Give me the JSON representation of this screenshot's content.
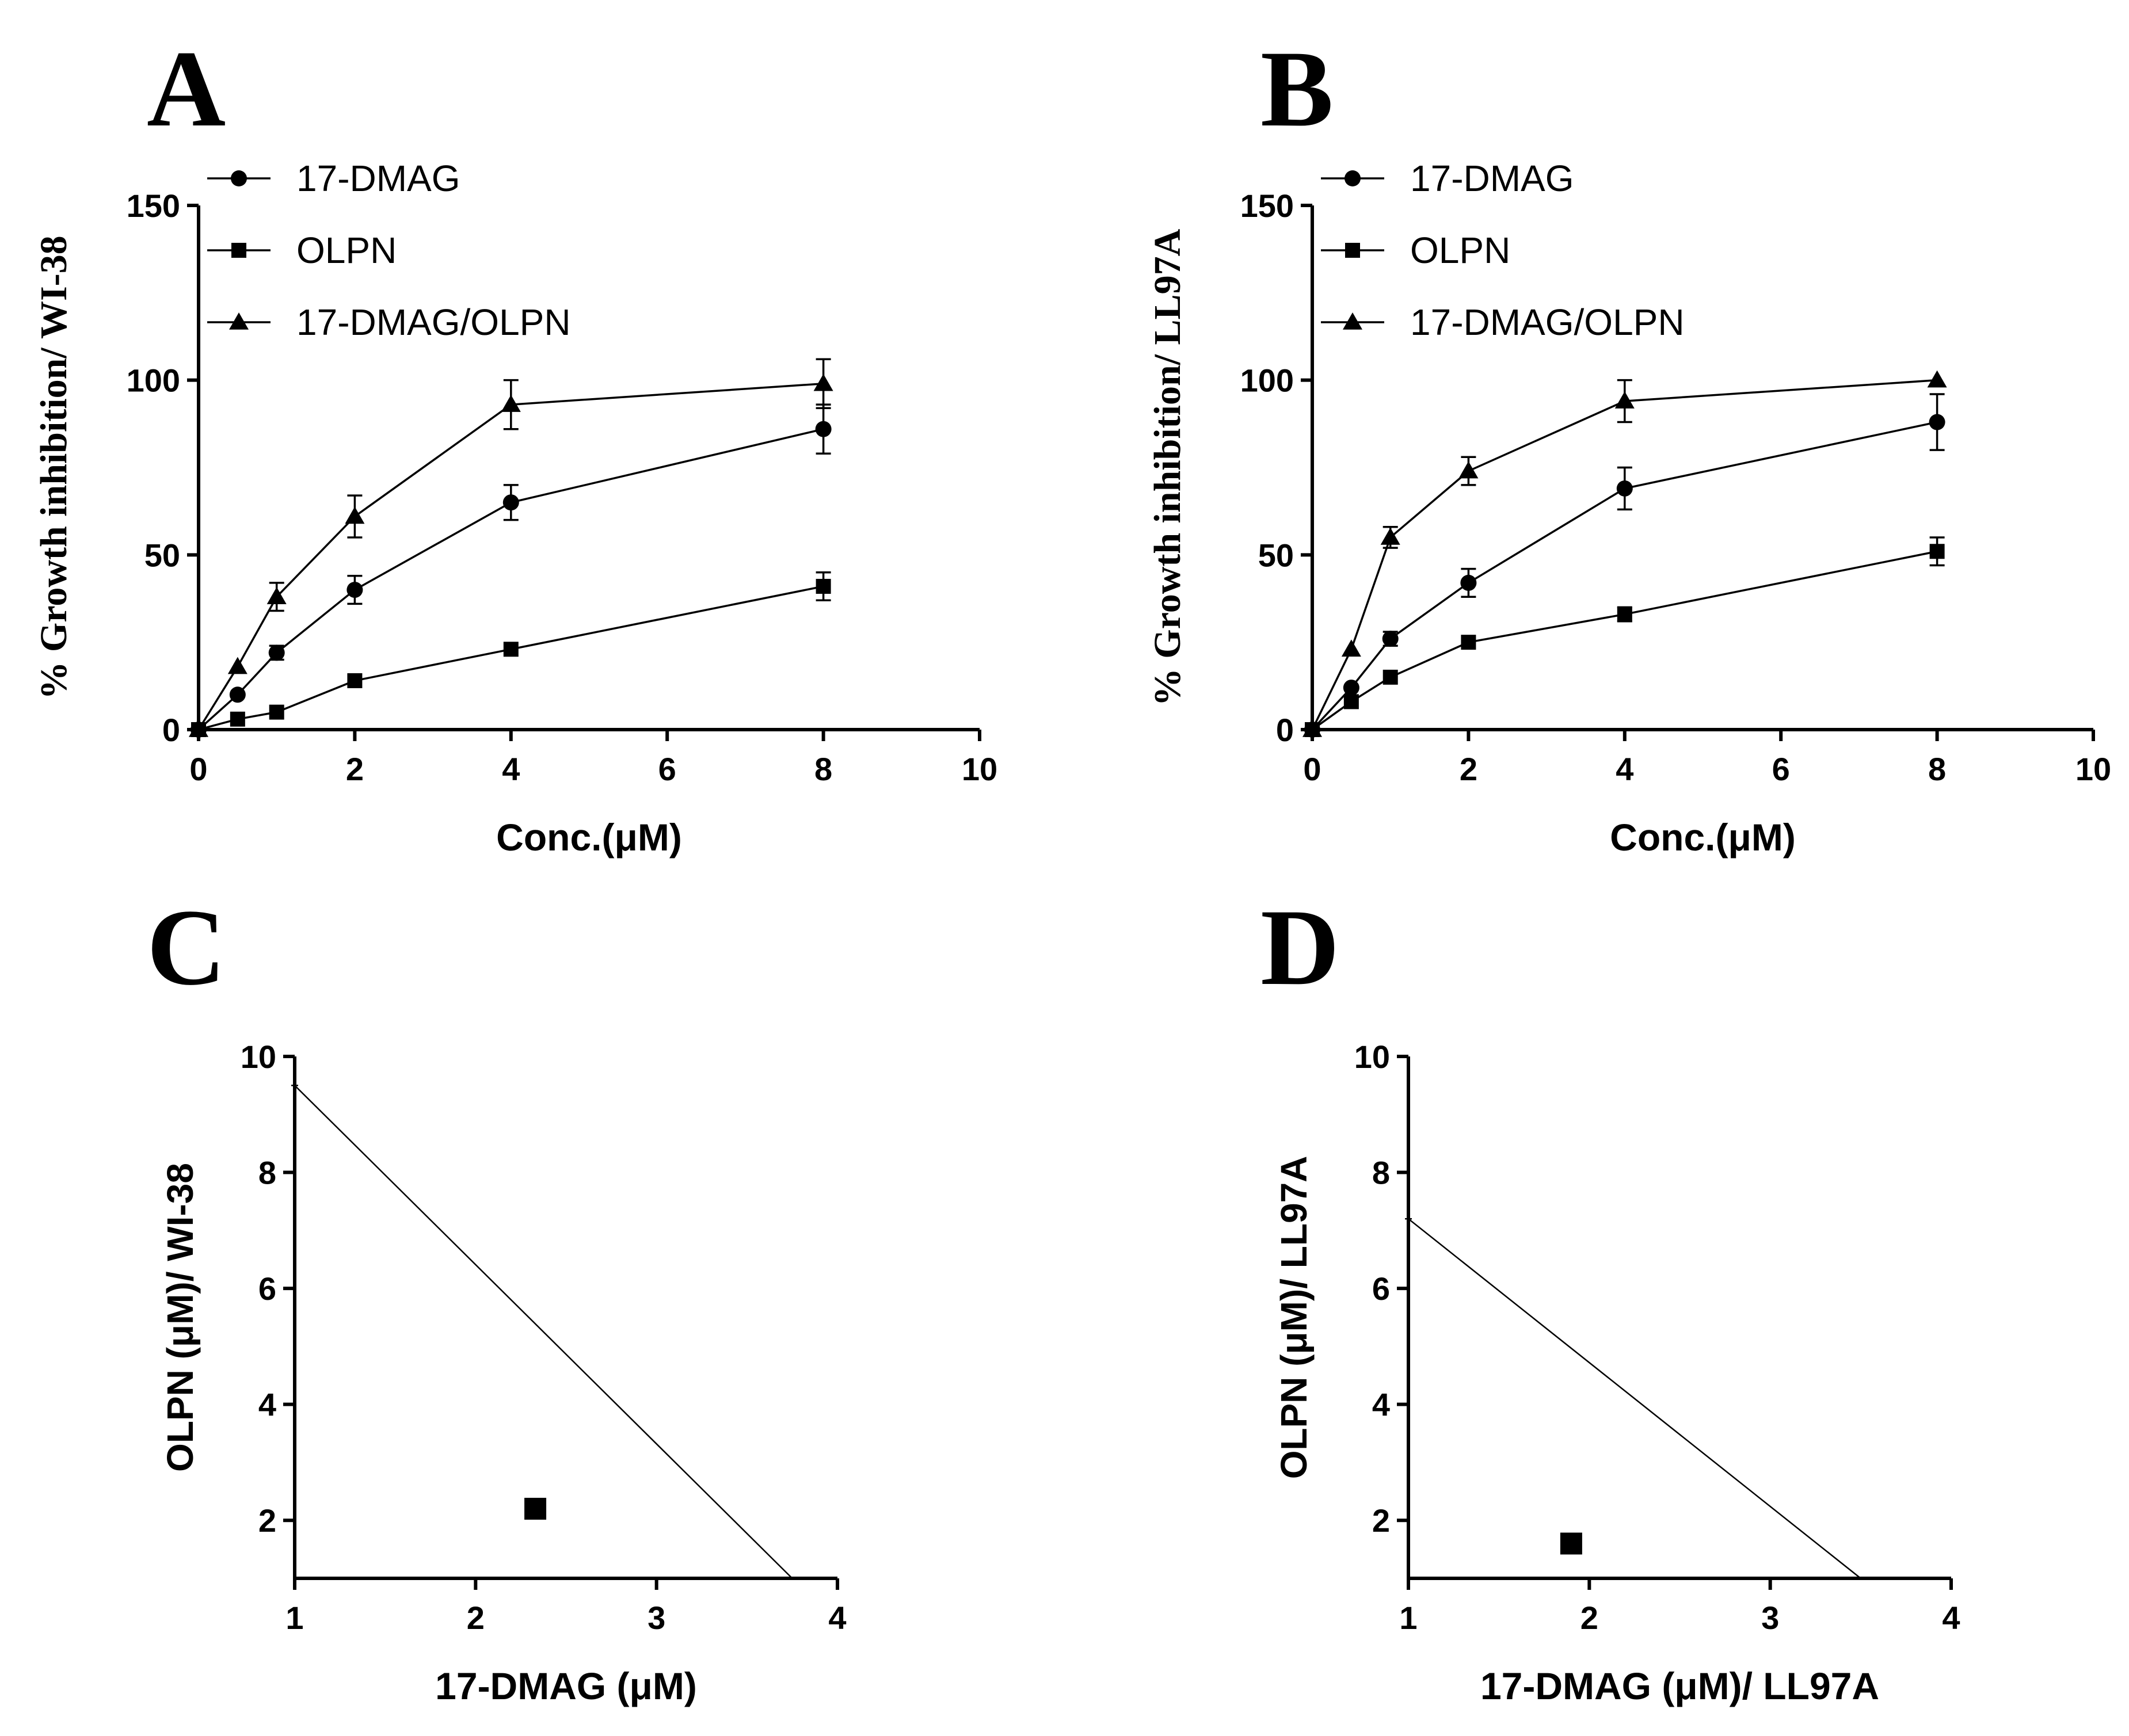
{
  "chart_data": [
    {
      "panel": "A",
      "type": "line",
      "xlabel": "Conc.(μM)",
      "ylabel": "% Growth inhibition/ WI-38",
      "xlim": [
        0,
        10
      ],
      "ylim": [
        0,
        150
      ],
      "xticks": [
        0,
        2,
        4,
        6,
        8,
        10
      ],
      "yticks": [
        0,
        50,
        100,
        150
      ],
      "legend": "top-left",
      "series": [
        {
          "name": "17-DMAG",
          "marker": "circle",
          "x": [
            0,
            0.5,
            1,
            2,
            4,
            8
          ],
          "y": [
            0,
            10,
            22,
            40,
            65,
            86
          ],
          "err": [
            0,
            0,
            2,
            4,
            5,
            7
          ]
        },
        {
          "name": "OLPN",
          "marker": "square",
          "x": [
            0,
            0.5,
            1,
            2,
            4,
            8
          ],
          "y": [
            0,
            3,
            5,
            14,
            23,
            41
          ],
          "err": [
            0,
            0,
            0,
            0,
            0,
            4
          ]
        },
        {
          "name": "17-DMAG/OLPN",
          "marker": "triangle",
          "x": [
            0,
            0.5,
            1,
            2,
            4,
            8
          ],
          "y": [
            0,
            18,
            38,
            61,
            93,
            99
          ],
          "err": [
            0,
            0,
            4,
            6,
            7,
            7
          ]
        }
      ]
    },
    {
      "panel": "B",
      "type": "line",
      "xlabel": "Conc.(μM)",
      "ylabel": "% Growth inhibition/ LL97A",
      "xlim": [
        0,
        10
      ],
      "ylim": [
        0,
        150
      ],
      "xticks": [
        0,
        2,
        4,
        6,
        8,
        10
      ],
      "yticks": [
        0,
        50,
        100,
        150
      ],
      "legend": "top-left",
      "series": [
        {
          "name": "17-DMAG",
          "marker": "circle",
          "x": [
            0,
            0.5,
            1,
            2,
            4,
            8
          ],
          "y": [
            0,
            12,
            26,
            42,
            69,
            88
          ],
          "err": [
            0,
            0,
            2,
            4,
            6,
            8
          ]
        },
        {
          "name": "OLPN",
          "marker": "square",
          "x": [
            0,
            0.5,
            1,
            2,
            4,
            8
          ],
          "y": [
            0,
            8,
            15,
            25,
            33,
            51
          ],
          "err": [
            0,
            0,
            0,
            0,
            2,
            4
          ]
        },
        {
          "name": "17-DMAG/OLPN",
          "marker": "triangle",
          "x": [
            0,
            0.5,
            1,
            2,
            4,
            8
          ],
          "y": [
            0,
            23,
            55,
            74,
            94,
            100
          ],
          "err": [
            0,
            0,
            3,
            4,
            6,
            0
          ]
        }
      ]
    },
    {
      "panel": "C",
      "type": "scatter",
      "xlabel": "17-DMAG  (μM)",
      "ylabel": "OLPN (μM)/ WI-38",
      "xlim": [
        1,
        4
      ],
      "ylim": [
        1,
        10
      ],
      "xticks": [
        1,
        2,
        3,
        4
      ],
      "yticks": [
        2,
        4,
        6,
        8,
        10
      ],
      "isobole": {
        "x": [
          1,
          3.75
        ],
        "y": [
          9.5,
          1
        ]
      },
      "points": [
        {
          "x": 2.33,
          "y": 2.2
        }
      ]
    },
    {
      "panel": "D",
      "type": "scatter",
      "xlabel": "17-DMAG  (μM)/ LL97A",
      "ylabel": "OLPN (μM)/ LL97A",
      "xlim": [
        1,
        4
      ],
      "ylim": [
        1,
        10
      ],
      "xticks": [
        1,
        2,
        3,
        4
      ],
      "yticks": [
        2,
        4,
        6,
        8,
        10
      ],
      "isobole": {
        "x": [
          1,
          3.5
        ],
        "y": [
          7.2,
          1
        ]
      },
      "points": [
        {
          "x": 1.9,
          "y": 1.6
        }
      ]
    }
  ]
}
